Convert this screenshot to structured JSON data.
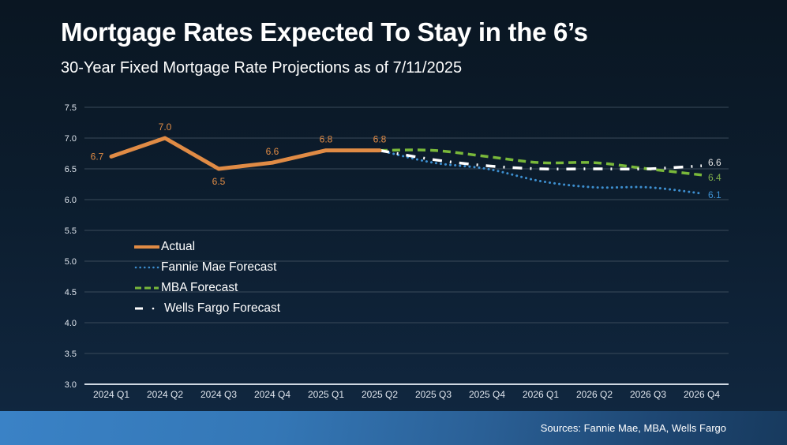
{
  "header": {
    "title": "Mortgage Rates Expected To Stay in the 6’s",
    "subtitle": "30-Year Fixed Mortgage Rate Projections as of 7/11/2025"
  },
  "footer": {
    "sources": "Sources: Fannie Mae, MBA, Wells Fargo"
  },
  "colors": {
    "actual": "#e08b45",
    "fannie_mae": "#3d8fd0",
    "mba": "#79b83a",
    "wells_fargo": "#ffffff",
    "gridline": "#3a4a5a",
    "axis_text": "#e0e6ee"
  },
  "legend": {
    "items": [
      {
        "label": "Actual",
        "series": "actual"
      },
      {
        "label": "Fannie Mae Forecast",
        "series": "fannie_mae"
      },
      {
        "label": "MBA Forecast",
        "series": "mba"
      },
      {
        "label": "Wells Fargo Forecast",
        "series": "wells_fargo"
      }
    ]
  },
  "chart_data": {
    "type": "line",
    "title": "Mortgage Rates Expected To Stay in the 6’s",
    "subtitle": "30-Year Fixed Mortgage Rate Projections as of 7/11/2025",
    "xlabel": "",
    "ylabel": "",
    "ylim": [
      3.0,
      7.5
    ],
    "yticks": [
      "3.0",
      "3.5",
      "4.0",
      "4.5",
      "5.0",
      "5.5",
      "6.0",
      "6.5",
      "7.0",
      "7.5"
    ],
    "grid": true,
    "legend_position": "center-left",
    "categories": [
      "2024 Q1",
      "2024 Q2",
      "2024 Q3",
      "2024 Q4",
      "2025 Q1",
      "2025 Q2",
      "2025 Q3",
      "2025 Q4",
      "2026 Q1",
      "2026 Q2",
      "2026 Q3",
      "2026 Q4"
    ],
    "series": [
      {
        "name": "Actual",
        "key": "actual",
        "style": "solid",
        "values": [
          6.7,
          7.0,
          6.5,
          6.6,
          6.8,
          6.8,
          null,
          null,
          null,
          null,
          null,
          null
        ],
        "labels": [
          "6.7",
          "7.0",
          "6.5",
          "6.6",
          "6.8",
          "6.8",
          null,
          null,
          null,
          null,
          null,
          null
        ]
      },
      {
        "name": "Fannie Mae Forecast",
        "key": "fannie_mae",
        "style": "dotted",
        "values": [
          null,
          null,
          null,
          null,
          null,
          6.8,
          6.6,
          6.5,
          6.3,
          6.2,
          6.2,
          6.1
        ],
        "labels": [
          null,
          null,
          null,
          null,
          null,
          null,
          null,
          null,
          null,
          null,
          null,
          "6.1"
        ]
      },
      {
        "name": "MBA Forecast",
        "key": "mba",
        "style": "dashed",
        "values": [
          null,
          null,
          null,
          null,
          null,
          6.8,
          6.8,
          6.7,
          6.6,
          6.6,
          6.5,
          6.4
        ],
        "labels": [
          null,
          null,
          null,
          null,
          null,
          null,
          null,
          null,
          null,
          null,
          null,
          "6.4"
        ]
      },
      {
        "name": "Wells Fargo Forecast",
        "key": "wells_fargo",
        "style": "dash-dot",
        "values": [
          null,
          null,
          null,
          null,
          null,
          6.8,
          6.65,
          6.55,
          6.5,
          6.5,
          6.5,
          6.55
        ],
        "labels": [
          null,
          null,
          null,
          null,
          null,
          null,
          null,
          null,
          null,
          null,
          null,
          "6.6"
        ]
      }
    ]
  }
}
